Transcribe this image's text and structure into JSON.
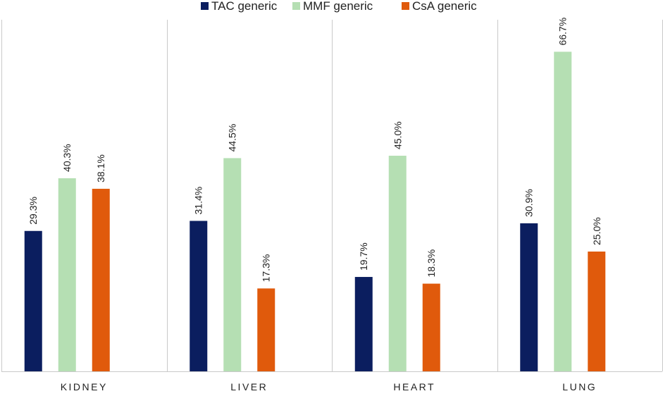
{
  "chart_data": {
    "type": "bar",
    "categories": [
      "KIDNEY",
      "LIVER",
      "HEART",
      "LUNG"
    ],
    "series": [
      {
        "name": "TAC generic",
        "color": "#0b1e5f",
        "values": [
          29.3,
          31.4,
          19.7,
          30.9
        ],
        "labels": [
          "29.3%",
          "31.4%",
          "19.7%",
          "30.9%"
        ]
      },
      {
        "name": "MMF  generic",
        "color": "#b5dfb3",
        "values": [
          40.3,
          44.5,
          45.0,
          66.7
        ],
        "labels": [
          "40.3%",
          "44.5%",
          "45.0%",
          "66.7%"
        ]
      },
      {
        "name": "CsA generic",
        "color": "#e05a0c",
        "values": [
          38.1,
          17.3,
          18.3,
          25.0
        ],
        "labels": [
          "38.1%",
          "17.3%",
          "18.3%",
          "25.0%"
        ]
      }
    ],
    "title": "",
    "xlabel": "",
    "ylabel": "",
    "ylim": [
      0,
      70
    ],
    "grid": false,
    "legend_position": "top-center",
    "category_dividers": true
  }
}
